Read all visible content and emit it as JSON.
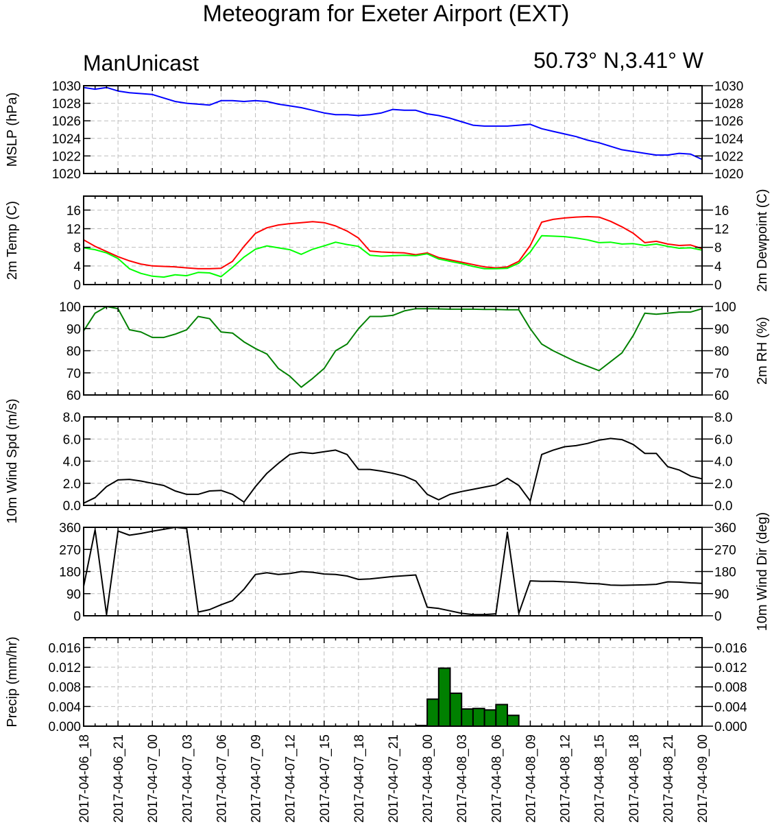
{
  "title": "Meteogram for Exeter Airport (EXT)",
  "subtitle_left": "ManUnicast",
  "subtitle_right": "50.73° N,3.41° W",
  "time_labels": [
    "2017-04-06_18",
    "2017-04-06_21",
    "2017-04-07_00",
    "2017-04-07_03",
    "2017-04-07_06",
    "2017-04-07_09",
    "2017-04-07_12",
    "2017-04-07_15",
    "2017-04-07_18",
    "2017-04-07_21",
    "2017-04-08_00",
    "2017-04-08_03",
    "2017-04-08_06",
    "2017-04-08_09",
    "2017-04-08_12",
    "2017-04-08_15",
    "2017-04-08_18",
    "2017-04-08_21",
    "2017-04-09_00"
  ],
  "colors": {
    "mslp": "#0000ff",
    "temp": "#ff0000",
    "dewpoint": "#00ff00",
    "rh": "#008000",
    "wind": "#000000",
    "precip_fill": "#008000"
  },
  "chart_data": [
    {
      "type": "line",
      "ylabel": "MSLP (hPa)",
      "ylim": [
        1020,
        1030
      ],
      "yticks": [
        1020,
        1022,
        1024,
        1026,
        1028,
        1030
      ],
      "xlim": [
        0,
        54
      ],
      "grid": true,
      "series": [
        {
          "color": "#0000ff",
          "x": [
            0,
            1,
            2,
            3,
            4,
            5,
            6,
            7,
            8,
            9,
            10,
            11,
            12,
            13,
            14,
            15,
            16,
            17,
            18,
            19,
            20,
            21,
            22,
            23,
            24,
            25,
            26,
            27,
            28,
            29,
            30,
            31,
            32,
            33,
            34,
            35,
            36,
            37,
            38,
            39,
            40,
            41,
            42,
            43,
            44,
            45,
            46,
            47,
            48,
            49,
            50,
            51,
            52,
            53,
            54
          ],
          "values": [
            1029.8,
            1029.6,
            1029.8,
            1029.4,
            1029.2,
            1029.1,
            1029.0,
            1028.6,
            1028.2,
            1028.0,
            1027.9,
            1027.8,
            1028.3,
            1028.3,
            1028.2,
            1028.3,
            1028.2,
            1027.9,
            1027.7,
            1027.5,
            1027.2,
            1026.9,
            1026.7,
            1026.7,
            1026.6,
            1026.7,
            1026.9,
            1027.3,
            1027.2,
            1027.2,
            1026.8,
            1026.6,
            1026.3,
            1025.9,
            1025.5,
            1025.4,
            1025.4,
            1025.4,
            1025.5,
            1025.6,
            1025.1,
            1024.8,
            1024.5,
            1024.2,
            1023.8,
            1023.5,
            1023.1,
            1022.7,
            1022.5,
            1022.3,
            1022.1,
            1022.1,
            1022.3,
            1022.2,
            1021.6
          ]
        }
      ]
    },
    {
      "type": "line",
      "ylabel": "2m Temp (C)",
      "ylabel_right": "2m Dewpoint (C)",
      "ylim": [
        0,
        19
      ],
      "yticks": [
        0,
        4,
        8,
        12,
        16
      ],
      "xlim": [
        0,
        54
      ],
      "grid": true,
      "series": [
        {
          "color": "#ff0000",
          "x": [
            0,
            1,
            2,
            3,
            4,
            5,
            6,
            7,
            8,
            9,
            10,
            11,
            12,
            13,
            14,
            15,
            16,
            17,
            18,
            19,
            20,
            21,
            22,
            23,
            24,
            25,
            26,
            27,
            28,
            29,
            30,
            31,
            32,
            33,
            34,
            35,
            36,
            37,
            38,
            39,
            40,
            41,
            42,
            43,
            44,
            45,
            46,
            47,
            48,
            49,
            50,
            51,
            52,
            53,
            54
          ],
          "values": [
            9.6,
            8.2,
            7.1,
            6.0,
            5.1,
            4.4,
            4.0,
            3.9,
            3.8,
            3.6,
            3.4,
            3.4,
            3.5,
            5.0,
            8.2,
            11.0,
            12.2,
            12.8,
            13.1,
            13.3,
            13.5,
            13.3,
            12.6,
            11.5,
            10.0,
            7.2,
            7.0,
            6.9,
            6.8,
            6.4,
            6.8,
            5.8,
            5.3,
            4.8,
            4.3,
            3.8,
            3.6,
            3.8,
            5.0,
            8.4,
            13.4,
            14.0,
            14.3,
            14.5,
            14.6,
            14.5,
            13.6,
            12.4,
            11.0,
            9.0,
            9.3,
            8.7,
            8.4,
            8.5,
            7.7
          ]
        },
        {
          "color": "#00ff00",
          "x": [
            0,
            1,
            2,
            3,
            4,
            5,
            6,
            7,
            8,
            9,
            10,
            11,
            12,
            13,
            14,
            15,
            16,
            17,
            18,
            19,
            20,
            21,
            22,
            23,
            24,
            25,
            26,
            27,
            28,
            29,
            30,
            31,
            32,
            33,
            34,
            35,
            36,
            37,
            38,
            39,
            40,
            41,
            42,
            43,
            44,
            45,
            46,
            47,
            48,
            49,
            50,
            51,
            52,
            53,
            54
          ],
          "values": [
            7.9,
            7.5,
            6.8,
            5.6,
            3.4,
            2.4,
            1.8,
            1.6,
            2.1,
            1.9,
            2.6,
            2.5,
            1.7,
            3.7,
            5.9,
            7.6,
            8.3,
            7.9,
            7.5,
            6.5,
            7.6,
            8.3,
            9.1,
            8.6,
            8.2,
            6.3,
            6.1,
            6.2,
            6.3,
            6.2,
            6.6,
            5.5,
            5.0,
            4.5,
            3.9,
            3.4,
            3.4,
            3.5,
            4.6,
            7.0,
            10.5,
            10.4,
            10.3,
            10.0,
            9.6,
            9.0,
            9.1,
            8.7,
            8.8,
            8.4,
            8.7,
            8.2,
            7.8,
            7.9,
            7.4
          ]
        }
      ]
    },
    {
      "type": "line",
      "ylabel_right": "2m RH (%)",
      "ylim": [
        60,
        100
      ],
      "yticks": [
        60,
        70,
        80,
        90,
        100
      ],
      "xlim": [
        0,
        54
      ],
      "grid": true,
      "series": [
        {
          "color": "#008000",
          "x": [
            0,
            1,
            2,
            3,
            4,
            5,
            6,
            7,
            8,
            9,
            10,
            11,
            12,
            13,
            14,
            15,
            16,
            17,
            18,
            19,
            20,
            21,
            22,
            23,
            24,
            25,
            26,
            27,
            28,
            29,
            30,
            31,
            32,
            33,
            34,
            35,
            36,
            37,
            38,
            39,
            40,
            41,
            42,
            43,
            44,
            45,
            46,
            47,
            48,
            49,
            50,
            51,
            52,
            53,
            54
          ],
          "values": [
            89,
            97,
            100,
            99,
            89.5,
            88.5,
            86,
            86,
            87.5,
            89.5,
            95.5,
            94.5,
            88.5,
            88,
            84,
            81,
            78.5,
            72,
            68.5,
            63.5,
            67.5,
            72,
            80,
            83,
            90,
            95.5,
            95.5,
            96,
            98,
            99,
            99,
            98.9,
            98.8,
            98.8,
            98.8,
            98.7,
            98.7,
            98.5,
            98.5,
            90,
            83,
            80,
            77.5,
            75,
            73,
            71,
            75,
            79,
            87,
            97,
            96.5,
            97,
            97.5,
            97.5,
            99
          ]
        }
      ]
    },
    {
      "type": "line",
      "ylabel": "10m Wind Spd (m/s)",
      "ylim": [
        0,
        8
      ],
      "yticks": [
        0.0,
        2.0,
        4.0,
        6.0,
        8.0
      ],
      "xlim": [
        0,
        54
      ],
      "grid": true,
      "series": [
        {
          "color": "#000000",
          "x": [
            0,
            1,
            2,
            3,
            4,
            5,
            6,
            7,
            8,
            9,
            10,
            11,
            12,
            13,
            14,
            15,
            16,
            17,
            18,
            19,
            20,
            21,
            22,
            23,
            24,
            25,
            26,
            27,
            28,
            29,
            30,
            31,
            32,
            33,
            34,
            35,
            36,
            37,
            38,
            39,
            40,
            41,
            42,
            43,
            44,
            45,
            46,
            47,
            48,
            49,
            50,
            51,
            52,
            53,
            54
          ],
          "values": [
            0.2,
            0.7,
            1.7,
            2.3,
            2.35,
            2.2,
            2.0,
            1.8,
            1.3,
            1.0,
            1.0,
            1.3,
            1.35,
            1.0,
            0.3,
            1.7,
            2.9,
            3.8,
            4.6,
            4.8,
            4.7,
            4.85,
            5.0,
            4.6,
            3.25,
            3.25,
            3.1,
            2.9,
            2.65,
            2.2,
            1.0,
            0.5,
            1.0,
            1.25,
            1.45,
            1.65,
            1.85,
            2.45,
            1.8,
            0.4,
            4.6,
            5.0,
            5.3,
            5.4,
            5.6,
            5.9,
            6.05,
            5.95,
            5.5,
            4.7,
            4.7,
            3.5,
            3.2,
            2.65,
            2.4
          ]
        }
      ]
    },
    {
      "type": "line",
      "ylabel_right": "10m Wind Dir (deg)",
      "ylim": [
        0,
        360
      ],
      "yticks": [
        0,
        90,
        180,
        270,
        360
      ],
      "xlim": [
        0,
        54
      ],
      "grid": true,
      "series": [
        {
          "color": "#000000",
          "x": [
            0,
            1,
            2,
            3,
            4,
            5,
            6,
            7,
            8,
            9,
            10,
            11,
            12,
            13,
            14,
            15,
            16,
            17,
            18,
            19,
            20,
            21,
            22,
            23,
            24,
            25,
            26,
            27,
            28,
            29,
            30,
            31,
            32,
            33,
            34,
            35,
            36,
            37,
            38,
            39,
            40,
            41,
            42,
            43,
            44,
            45,
            46,
            47,
            48,
            49,
            50,
            51,
            52,
            53,
            54
          ],
          "values": [
            120,
            350,
            5,
            345,
            328,
            335,
            344,
            352,
            360,
            355,
            15,
            25,
            45,
            62,
            108,
            168,
            175,
            168,
            172,
            180,
            177,
            170,
            168,
            162,
            148,
            150,
            155,
            160,
            163,
            166,
            35,
            30,
            20,
            10,
            5,
            5,
            8,
            340,
            10,
            142,
            140,
            140,
            138,
            136,
            132,
            130,
            125,
            124,
            125,
            126,
            128,
            138,
            137,
            134,
            132
          ]
        }
      ]
    },
    {
      "type": "bar",
      "ylabel": "Precip (mm/hr)",
      "ylim": [
        0,
        0.018
      ],
      "yticks": [
        0.0,
        0.004,
        0.008,
        0.012,
        0.016
      ],
      "xlim": [
        0,
        54
      ],
      "grid": true,
      "series": [
        {
          "color": "#008000",
          "x": [
            30,
            31,
            32,
            33,
            34,
            35,
            36,
            37
          ],
          "values": [
            0.0055,
            0.0118,
            0.0067,
            0.0035,
            0.0036,
            0.0033,
            0.0044,
            0.0022
          ]
        }
      ]
    }
  ]
}
